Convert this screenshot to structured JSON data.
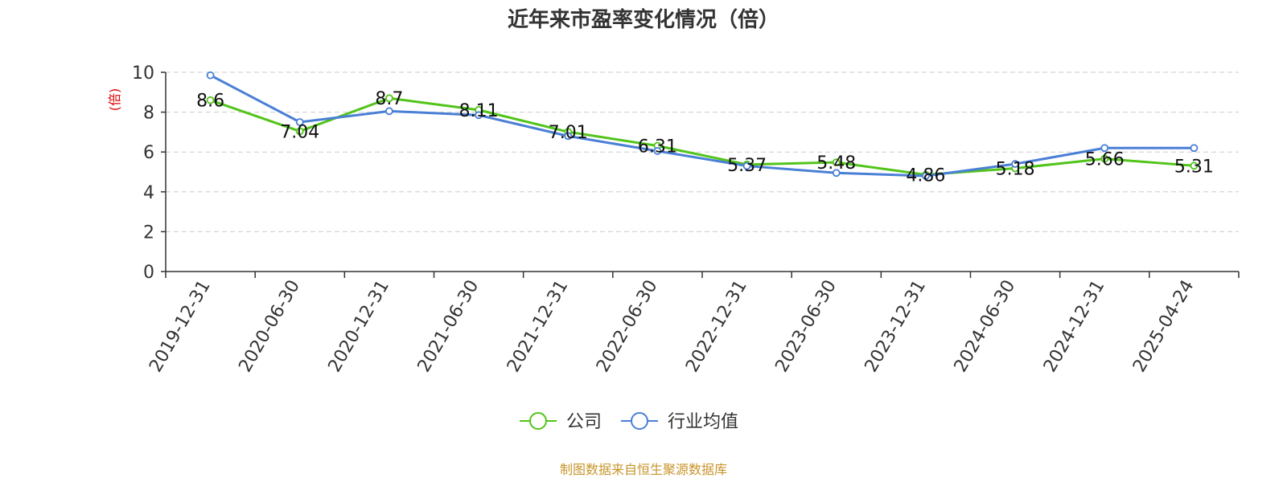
{
  "chart_data": {
    "type": "line",
    "title": "近年来市盈率变化情况（倍）",
    "ylabel": "(倍)",
    "xlabel": "",
    "ylim": [
      0,
      10
    ],
    "yticks": [
      0,
      2,
      4,
      6,
      8,
      10
    ],
    "grid": true,
    "legend_position": "bottom",
    "categories": [
      "2019-12-31",
      "2020-06-30",
      "2020-12-31",
      "2021-06-30",
      "2021-12-31",
      "2022-06-30",
      "2022-12-31",
      "2023-06-30",
      "2023-12-31",
      "2024-06-30",
      "2024-12-31",
      "2025-04-24"
    ],
    "series": [
      {
        "name": "公司",
        "color": "#52c41a",
        "values": [
          8.6,
          7.04,
          8.7,
          8.11,
          7.01,
          6.31,
          5.37,
          5.48,
          4.86,
          5.18,
          5.66,
          5.31
        ],
        "data_labels": [
          "8.6",
          "7.04",
          "8.7",
          "8.11",
          "7.01",
          "6.31",
          "5.37",
          "5.48",
          "4.86",
          "5.18",
          "5.66",
          "5.31"
        ]
      },
      {
        "name": "行业均值",
        "color": "#4a7fd6",
        "values": [
          9.85,
          7.5,
          8.05,
          7.85,
          6.8,
          6.05,
          5.3,
          4.95,
          4.8,
          5.4,
          6.2,
          6.2
        ]
      }
    ]
  },
  "source_text": "制图数据来自恒生聚源数据库"
}
